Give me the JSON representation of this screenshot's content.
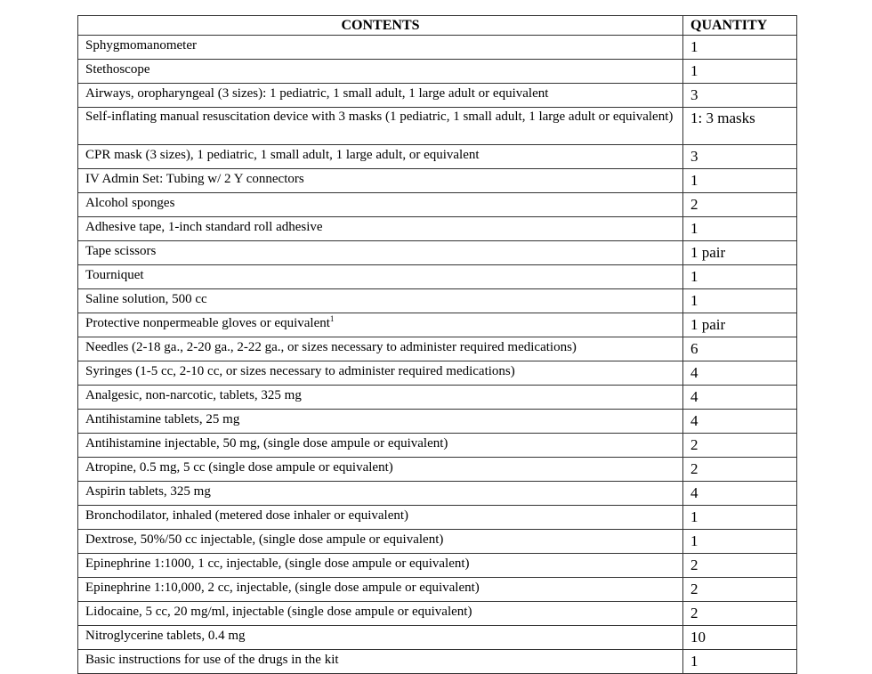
{
  "table": {
    "headers": {
      "contents": "CONTENTS",
      "quantity": "QUANTITY"
    },
    "rows": [
      {
        "contents": "Sphygmomanometer",
        "quantity": "1"
      },
      {
        "contents": "Stethoscope",
        "quantity": "1"
      },
      {
        "contents": "Airways, oropharyngeal  (3 sizes): 1 pediatric, 1 small adult,  1 large adult or equivalent",
        "quantity": "3"
      },
      {
        "contents": "Self-inflating manual resuscitation device with 3 masks (1 pediatric, 1 small adult, 1 large adult or equivalent)",
        "quantity": "1: 3 masks"
      },
      {
        "contents": "CPR mask (3 sizes), 1 pediatric, 1 small adult, 1 large adult, or equivalent",
        "quantity": "3"
      },
      {
        "contents": "IV Admin Set: Tubing w/ 2 Y connectors",
        "quantity": "1"
      },
      {
        "contents": "Alcohol sponges",
        "quantity": "2"
      },
      {
        "contents": "Adhesive tape, 1-inch standard roll adhesive",
        "quantity": "1"
      },
      {
        "contents": "Tape scissors",
        "quantity": "1 pair"
      },
      {
        "contents": "Tourniquet",
        "quantity": "1"
      },
      {
        "contents": "Saline solution, 500 cc",
        "quantity": "1"
      },
      {
        "contents": "Protective nonpermeable gloves or equivalent",
        "footnote": "1",
        "quantity": "1 pair"
      },
      {
        "contents": "Needles (2-18 ga., 2-20 ga., 2-22 ga., or sizes necessary to administer required medications)",
        "quantity": "6"
      },
      {
        "contents": "Syringes (1-5 cc, 2-10 cc, or sizes necessary to administer required medications)",
        "quantity": "4"
      },
      {
        "contents": "Analgesic, non-narcotic, tablets, 325 mg",
        "quantity": "4"
      },
      {
        "contents": "Antihistamine tablets,   25 mg",
        "quantity": "4"
      },
      {
        "contents": "Antihistamine injectable, 50 mg, (single dose ampule or equivalent)",
        "quantity": "2"
      },
      {
        "contents": "Atropine, 0.5 mg, 5 cc (single dose ampule or equivalent)",
        "quantity": "2"
      },
      {
        "contents": "Aspirin tablets, 325 mg",
        "quantity": "4"
      },
      {
        "contents": "Bronchodilator, inhaled  (metered dose inhaler or equivalent)",
        "quantity": "1"
      },
      {
        "contents": "Dextrose, 50%/50 cc injectable, (single dose ampule or equivalent)",
        "quantity": "1"
      },
      {
        "contents": "Epinephrine 1:1000, 1 cc, injectable, (single dose ampule or equivalent)",
        "quantity": "2"
      },
      {
        "contents": "Epinephrine 1:10,000, 2 cc, injectable, (single dose ampule or equivalent)",
        "quantity": "2"
      },
      {
        "contents": "Lidocaine, 5 cc, 20 mg/ml, injectable (single dose ampule or equivalent)",
        "quantity": "2"
      },
      {
        "contents": "Nitroglycerine tablets, 0.4 mg",
        "quantity": "10"
      },
      {
        "contents": "Basic instructions for use of the drugs in the kit",
        "quantity": "1"
      }
    ]
  }
}
